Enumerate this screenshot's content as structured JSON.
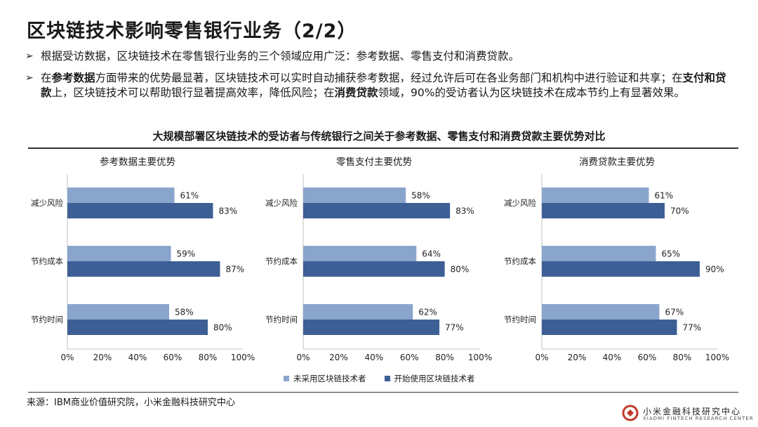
{
  "header": {
    "title": "区块链技术影响零售银行业务（2/2）"
  },
  "bullets": {
    "b1": "根据受访数据，区块链技术在零售银行业务的三个领域应用广泛：参考数据、零售支付和消费贷款。",
    "b2": {
      "p1": "在",
      "s1": "参考数据",
      "p2": "方面带来的优势最显著，区块链技术可以实时自动捕获参考数据，经过允许后可在各业务部门和机构中进行验证和共享；在",
      "s2": "支付和贷款",
      "p3": "上，区块链技术可以帮助银行显著提高效率，降低风险；在",
      "s3": "消费贷款",
      "p4": "领域，90%的受访者认为区块链技术在成本节约上有显著效果。"
    }
  },
  "chart_header": "大规模部署区块链技术的受访者与传统银行之间关于参考数据、零售支付和消费贷款主要优势对比",
  "legend": {
    "s1": "未采用区块链技术者",
    "s2": "开始使用区块链技术者",
    "c1": "#8aa5cc",
    "c2": "#3d5f95"
  },
  "chart_data": [
    {
      "type": "bar",
      "orientation": "horizontal",
      "title": "参考数据主要优势",
      "categories": [
        "减少风险",
        "节约成本",
        "节约时间"
      ],
      "series": [
        {
          "name": "未采用区块链技术者",
          "values": [
            61,
            59,
            58
          ]
        },
        {
          "name": "开始使用区块链技术者",
          "values": [
            83,
            87,
            80
          ]
        }
      ],
      "xlim": [
        0,
        100
      ],
      "ticks": [
        "0%",
        "20%",
        "40%",
        "60%",
        "80%",
        "100%"
      ],
      "legend": "bottom"
    },
    {
      "type": "bar",
      "orientation": "horizontal",
      "title": "零售支付主要优势",
      "categories": [
        "减少风险",
        "节约成本",
        "节约时间"
      ],
      "series": [
        {
          "name": "未采用区块链技术者",
          "values": [
            58,
            64,
            62
          ]
        },
        {
          "name": "开始使用区块链技术者",
          "values": [
            83,
            80,
            77
          ]
        }
      ],
      "xlim": [
        0,
        100
      ],
      "ticks": [
        "0%",
        "20%",
        "40%",
        "60%",
        "80%",
        "100%"
      ],
      "legend": "bottom"
    },
    {
      "type": "bar",
      "orientation": "horizontal",
      "title": "消费贷款主要优势",
      "categories": [
        "减少风险",
        "节约成本",
        "节约时间"
      ],
      "series": [
        {
          "name": "未采用区块链技术者",
          "values": [
            61,
            65,
            67
          ]
        },
        {
          "name": "开始使用区块链技术者",
          "values": [
            70,
            90,
            77
          ]
        }
      ],
      "xlim": [
        0,
        100
      ],
      "ticks": [
        "0%",
        "20%",
        "40%",
        "60%",
        "80%",
        "100%"
      ],
      "legend": "bottom"
    }
  ],
  "footer": {
    "source": "来源：IBM商业价值研究院，小米金融科技研究中心"
  },
  "logo": {
    "cn": "小米金融科技研究中心",
    "en": "XIAOMI FINTECH RESEARCH CENTER"
  }
}
